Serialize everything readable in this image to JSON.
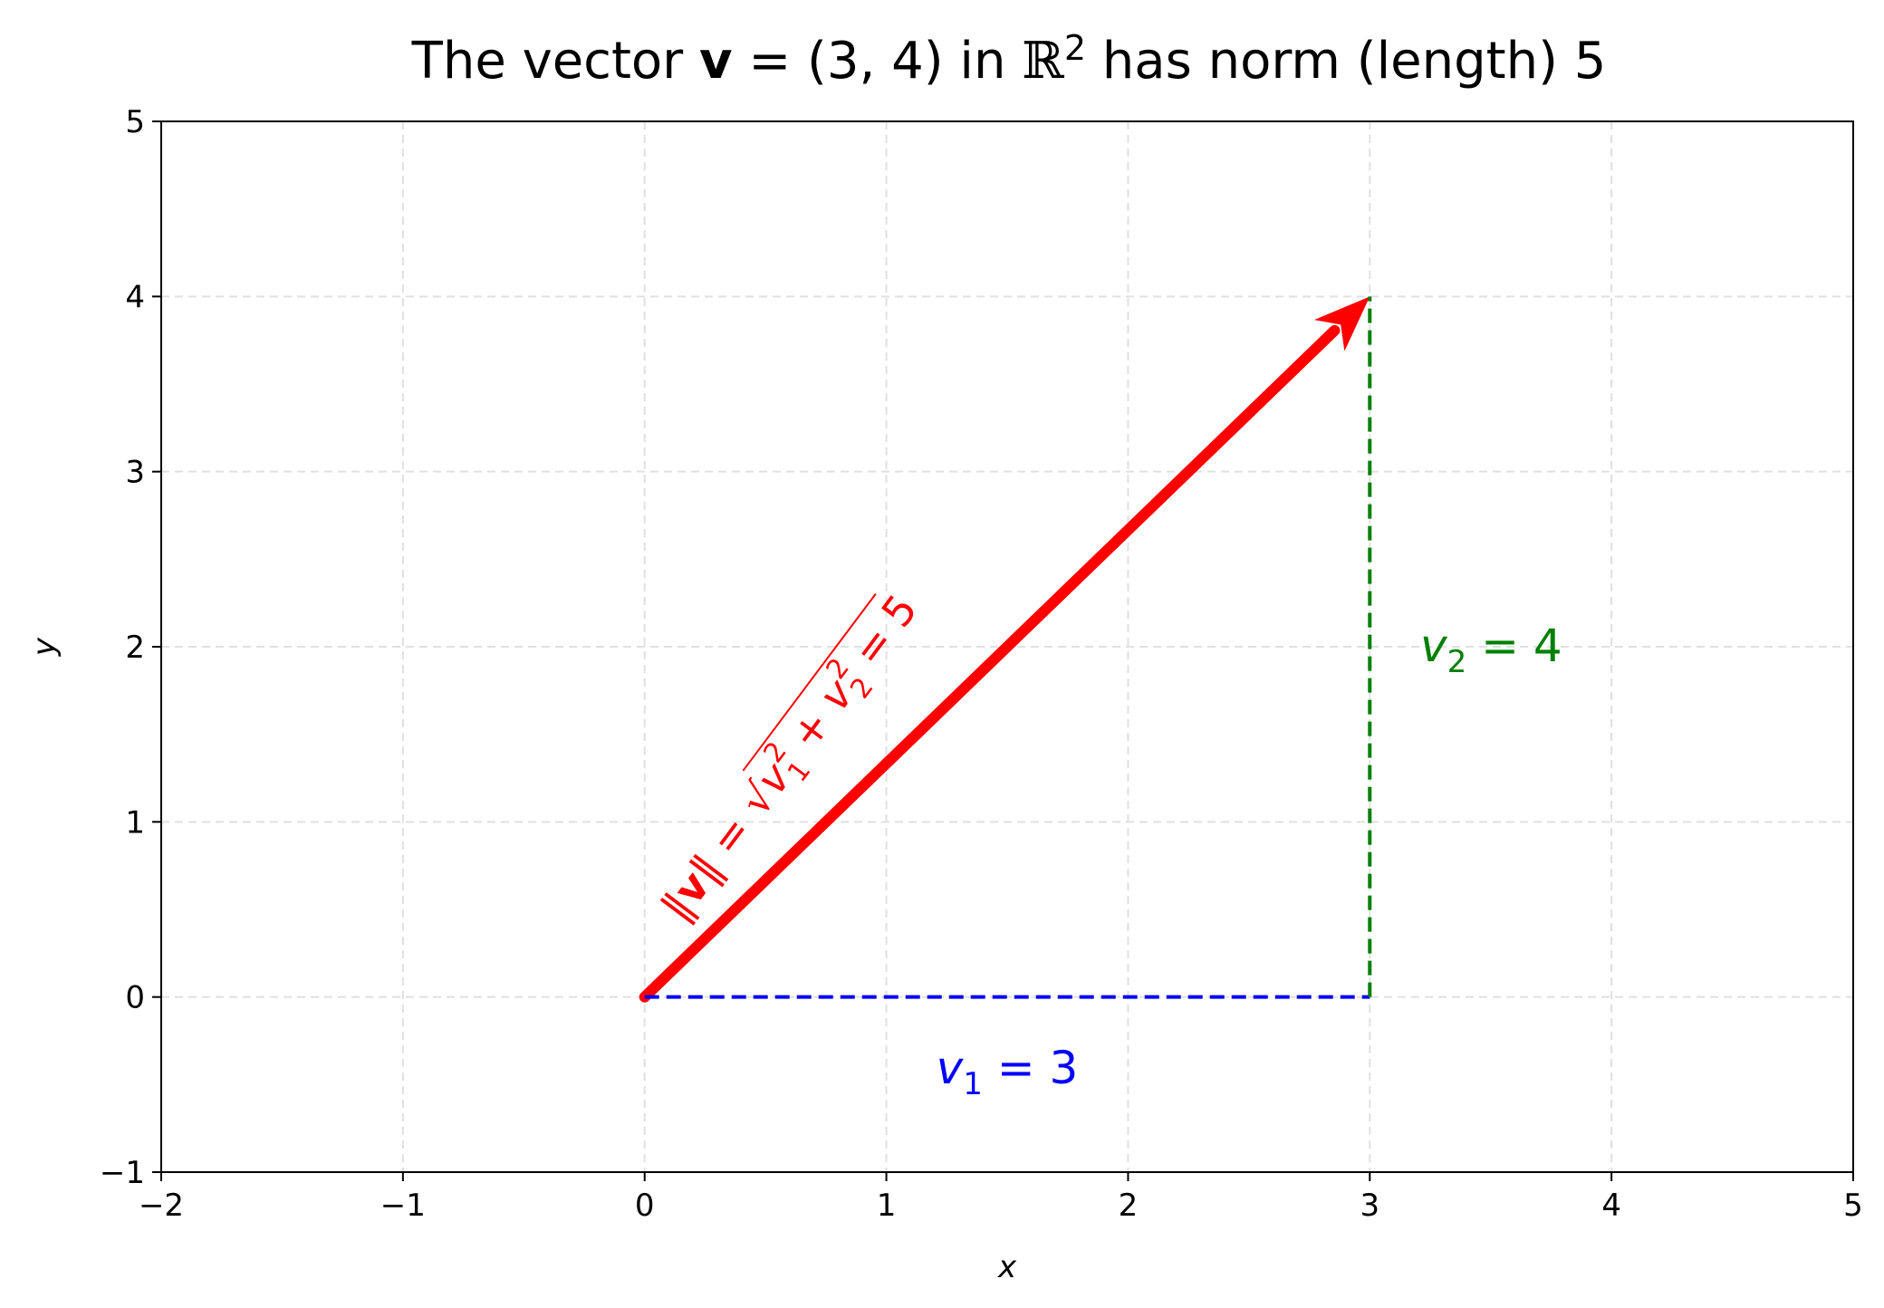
{
  "chart_data": {
    "type": "line",
    "title": {
      "prefix": "The vector ",
      "bold_symbol": "v",
      "middle": " = (3, 4) in ",
      "space_symbol": "ℝ",
      "space_exponent": "2",
      "suffix": " has norm (length) 5"
    },
    "xlabel": "x",
    "ylabel": "y",
    "xlim": [
      -2,
      5
    ],
    "ylim": [
      -1,
      5
    ],
    "xticks": [
      -2,
      -1,
      0,
      1,
      2,
      3,
      4,
      5
    ],
    "yticks": [
      -1,
      0,
      1,
      2,
      3,
      4,
      5
    ],
    "xtick_labels": [
      "−2",
      "−1",
      "0",
      "1",
      "2",
      "3",
      "4",
      "5"
    ],
    "ytick_labels": [
      "−1",
      "0",
      "1",
      "2",
      "3",
      "4",
      "5"
    ],
    "grid": true,
    "series": [
      {
        "kind": "arrow",
        "color": "#ff0000",
        "x": [
          0,
          3
        ],
        "y": [
          0,
          4
        ]
      },
      {
        "kind": "dashed",
        "color": "#0000ff",
        "x": [
          0,
          3
        ],
        "y": [
          0,
          0
        ]
      },
      {
        "kind": "dashed",
        "color": "#008000",
        "x": [
          3,
          3
        ],
        "y": [
          0,
          4
        ]
      }
    ],
    "annotations": {
      "norm": {
        "color": "#ff0000",
        "parts": [
          "‖",
          "v",
          "‖ = ",
          "v",
          "1",
          "2",
          " + ",
          "v",
          "2",
          "2",
          " = 5"
        ]
      },
      "v1": {
        "color": "#0000ff",
        "symbol": "v",
        "sub": "1",
        "rest": " = 3"
      },
      "v2": {
        "color": "#008000",
        "symbol": "v",
        "sub": "2",
        "rest": " = 4"
      }
    }
  }
}
